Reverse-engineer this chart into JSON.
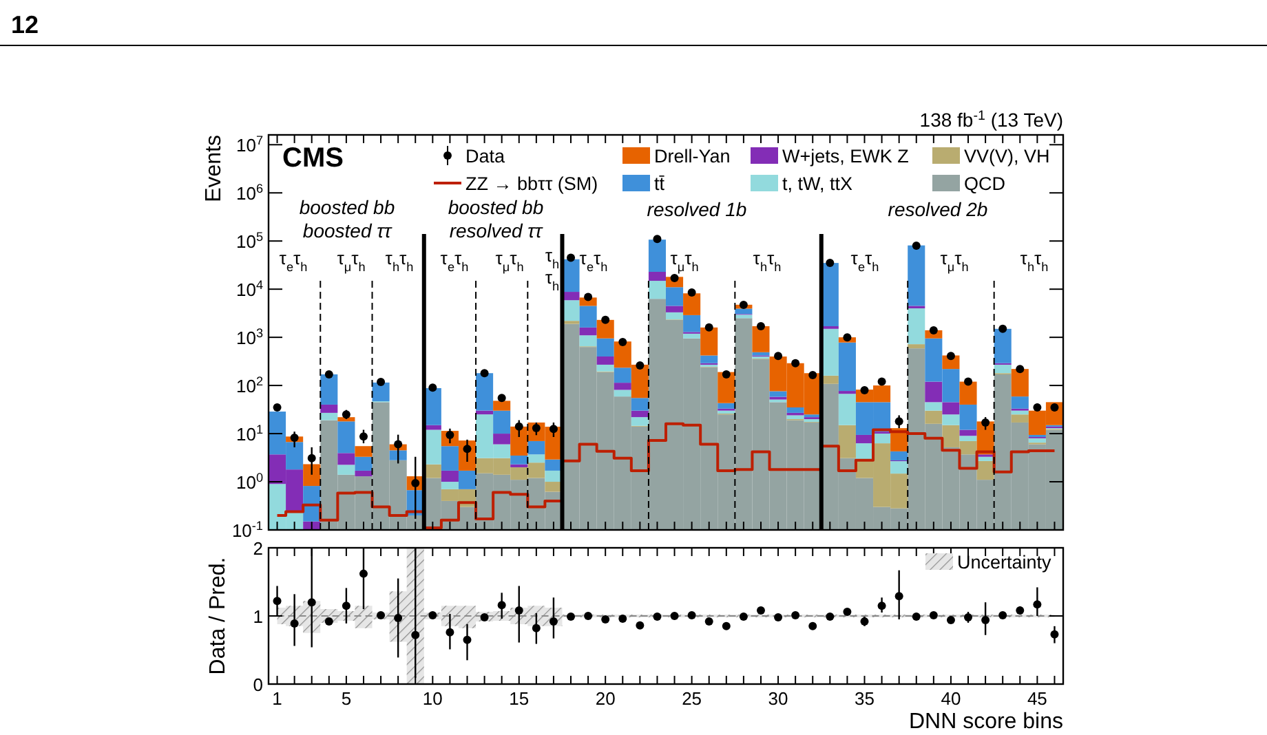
{
  "chart_data": [
    {
      "type": "bar",
      "stacked": true,
      "log": "y",
      "ylabel": "Events",
      "legend": "top",
      "tick_labels": "y",
      "x": [
        1,
        2,
        3,
        4,
        5,
        6,
        7,
        8,
        9,
        10,
        11,
        12,
        13,
        14,
        15,
        16,
        17,
        18,
        19,
        20,
        21,
        22,
        23,
        24,
        25,
        26,
        27,
        28,
        29,
        30,
        31,
        32,
        33,
        34,
        35,
        36,
        37,
        38,
        39,
        40,
        41,
        42,
        43,
        44,
        45,
        46
      ],
      "xlim": [
        0.5,
        46.5
      ],
      "xticks": [
        1,
        {
          "value": 2,
          "label": null
        },
        {
          "value": 3,
          "label": null
        },
        {
          "value": 4,
          "label": null
        },
        5,
        {
          "value": 6,
          "label": null
        },
        {
          "value": 7,
          "label": null
        },
        {
          "value": 8,
          "label": null
        },
        {
          "value": 9,
          "label": null
        },
        10,
        {
          "value": 11,
          "label": null
        },
        {
          "value": 12,
          "label": null
        },
        {
          "value": 13,
          "label": null
        },
        {
          "value": 14,
          "label": null
        },
        15,
        {
          "value": 16,
          "label": null
        },
        {
          "value": 17,
          "label": null
        },
        {
          "value": 18,
          "label": null
        },
        {
          "value": 19,
          "label": null
        },
        20,
        {
          "value": 21,
          "label": null
        },
        {
          "value": 22,
          "label": null
        },
        {
          "value": 23,
          "label": null
        },
        {
          "value": 24,
          "label": null
        },
        25,
        {
          "value": 26,
          "label": null
        },
        {
          "value": 27,
          "label": null
        },
        {
          "value": 28,
          "label": null
        },
        {
          "value": 29,
          "label": null
        },
        30,
        {
          "value": 31,
          "label": null
        },
        {
          "value": 32,
          "label": null
        },
        {
          "value": 33,
          "label": null
        },
        {
          "value": 34,
          "label": null
        },
        35,
        {
          "value": 36,
          "label": null
        },
        {
          "value": 37,
          "label": null
        },
        {
          "value": 38,
          "label": null
        },
        {
          "value": 39,
          "label": null
        },
        40,
        {
          "value": 41,
          "label": null
        },
        {
          "value": 42,
          "label": null
        },
        {
          "value": 43,
          "label": null
        },
        {
          "value": 44,
          "label": null
        },
        45,
        {
          "value": 46,
          "label": null
        }
      ],
      "ylim": [
        0.1,
        16000000
      ],
      "yticks": [
        {
          "value": 0.1,
          "label": "10$^{-1}$"
        },
        {
          "value": 1,
          "label": "10$^{0}$"
        },
        {
          "value": 10,
          "label": "10$^{1}$"
        },
        {
          "value": 100,
          "label": "10$^{2}$"
        },
        {
          "value": 1000,
          "label": "10$^{3}$"
        },
        {
          "value": 10000,
          "label": "10$^{4}$"
        },
        {
          "value": 100000,
          "label": "10$^{5}$"
        },
        {
          "value": 1000000,
          "label": "10$^{6}$"
        },
        {
          "value": 10000000,
          "label": "10$^{7}$"
        }
      ],
      "series": [
        {
          "name": "QCD",
          "color": "#94a4a2",
          "values": [
            null,
            null,
            null,
            19,
            1.4,
            1.3,
            45,
            2.8,
            0.2,
            1.2,
            0.4,
            0.3,
            1.5,
            1.4,
            1.1,
            1.2,
            0.62,
            1900,
            630,
            190,
            59,
            14,
            6300,
            2300,
            950,
            240,
            25,
            2500,
            350,
            45,
            19,
            17,
            108,
            3.1,
            1.2,
            0.3,
            0.28,
            590,
            16,
            5.2,
            3.7,
            1.1,
            170,
            17,
            6,
            12
          ]
        },
        {
          "name": "VV(V), VH",
          "color": "#b9ac70",
          "values": [
            null,
            null,
            null,
            null,
            null,
            null,
            null,
            null,
            null,
            1.1,
            0.3,
            0.4,
            1.6,
            1.7,
            0.9,
            1.3,
            0.38,
            300,
            20,
            5,
            null,
            0.5,
            null,
            50,
            null,
            5,
            1,
            null,
            10,
            null,
            1,
            0.5,
            52,
            11.9,
            1.7,
            6,
            1.2,
            130,
            14,
            9.8,
            3.3,
            1.6,
            10,
            8,
            0.5,
            0.5
          ]
        },
        {
          "name": "t, tW, ttX",
          "color": "#92dadd",
          "values": [
            0.9,
            0.25,
            null,
            8,
            0.85,
            null,
            2,
            null,
            null,
            9.7,
            0.3,
            null,
            22,
            2.9,
            null,
            1.2,
            0.7,
            3700,
            450,
            75,
            22,
            7.5,
            8600,
            950,
            240,
            25,
            4,
            450,
            40,
            6,
            4,
            2.5,
            1340,
            52,
            3.4,
            3.7,
            1.2,
            3280,
            15,
            10,
            2,
            0.6,
            90,
            5,
            1.5,
            0.5
          ]
        },
        {
          "name": "W+jets, EWK Z",
          "color": "#832db6",
          "values": [
            2.8,
            1.55,
            0.15,
            13,
            1.7,
            0.4,
            null,
            null,
            null,
            3,
            0.7,
            null,
            5,
            4,
            0.3,
            null,
            null,
            2900,
            500,
            130,
            33,
            8,
            8000,
            1200,
            100,
            20,
            3,
            100,
            20,
            7,
            3,
            2,
            200,
            10,
            3.1,
            1,
            0.1,
            500,
            75,
            20,
            3,
            0.4,
            20,
            3,
            0.5,
            1
          ]
        },
        {
          "name": "tt̄",
          "color": "#3f90da",
          "values": [
            25,
            4.9,
            0.67,
            130,
            14,
            1.6,
            68,
            1.7,
            0.47,
            73,
            3.8,
            1.0,
            150,
            20,
            1.2,
            3.3,
            1.2,
            33000,
            2900,
            550,
            120,
            25,
            84000,
            6500,
            1600,
            130,
            10,
            900,
            70,
            18,
            8,
            3,
            33300,
            703,
            35.6,
            34,
            1.5,
            76500,
            830,
            175,
            28,
            null,
            1210,
            26,
            0.9,
            1
          ]
        },
        {
          "name": "Drell-Yan",
          "color": "#e76300",
          "values": [
            null,
            2,
            1.5,
            null,
            4,
            2.2,
            null,
            1.5,
            0.63,
            null,
            5.9,
            5.5,
            null,
            18,
            10.5,
            10,
            11,
            null,
            2200,
            1350,
            585,
            215,
            null,
            7000,
            5300,
            1180,
            147,
            800,
            1210,
            323,
            255,
            155,
            null,
            220,
            37,
            55,
            8.7,
            null,
            450,
            200,
            80,
            14.2,
            null,
            161,
            20.6,
            30
          ]
        },
        {
          "name": "Data",
          "type": "scatter",
          "marker": "circle",
          "color": "#000000",
          "values": [
            35,
            8.2,
            3.1,
            170,
            25,
            8.7,
            118,
            6,
            0.94,
            90,
            9.4,
            4.8,
            180,
            55,
            14,
            13,
            12.5,
            45000,
            6900,
            2300,
            800,
            260,
            110000,
            17000,
            8500,
            1600,
            170,
            4700,
            1700,
            410,
            290,
            165,
            35000,
            1000,
            80,
            120,
            18,
            80000,
            1400,
            410,
            120,
            17,
            1500,
            220,
            35,
            35
          ],
          "errors": [
            null,
            [
              5.2,
              11
            ],
            [
              1.4,
              5.2
            ],
            null,
            [
              20,
              31
            ],
            [
              6.3,
              12
            ],
            null,
            [
              2.4,
              9.5
            ],
            [
              0.17,
              3.3
            ],
            null,
            [
              6.3,
              12.7
            ],
            [
              2.6,
              7.5
            ],
            null,
            [
              47,
              63
            ],
            [
              8.5,
              19
            ],
            [
              9.3,
              17
            ],
            [
              8.5,
              17
            ],
            null,
            null,
            null,
            null,
            null,
            null,
            null,
            null,
            null,
            null,
            null,
            null,
            null,
            null,
            null,
            null,
            null,
            [
              74,
              86
            ],
            [
              108,
              133
            ],
            [
              13,
              24
            ],
            null,
            null,
            null,
            null,
            [
              12,
              22
            ],
            null,
            null,
            [
              30,
              42
            ],
            [
              29,
              41
            ]
          ]
        },
        {
          "name": "ZZ → bbττ (SM)",
          "type": "step",
          "color": "#bd1f01",
          "values": [
            0.2,
            0.24,
            0.33,
            0.16,
            0.58,
            0.6,
            0.3,
            0.2,
            0.24,
            0.11,
            0.16,
            0.37,
            0.17,
            0.6,
            0.55,
            0.3,
            0.4,
            2.7,
            6,
            4.3,
            3.1,
            1.7,
            7.2,
            16,
            15,
            6,
            1.7,
            1.8,
            4.2,
            1.8,
            1.8,
            1.8,
            5.5,
            1.7,
            2.8,
            12,
            11,
            10,
            8,
            4.5,
            1.9,
            4.2,
            1.6,
            4.2,
            4.4,
            4.4
          ]
        }
      ],
      "ref_lines": [
        {
          "axis": "x",
          "value": 9.5,
          "line_style": "solid",
          "color": "#000000"
        },
        {
          "axis": "x",
          "value": 17.5,
          "line_style": "solid",
          "color": "#000000"
        },
        {
          "axis": "x",
          "value": 32.5,
          "line_style": "solid",
          "color": "#000000"
        },
        {
          "axis": "x",
          "value": 3.5,
          "line_style": "dashed",
          "color": "#000000"
        },
        {
          "axis": "x",
          "value": 6.5,
          "line_style": "dashed",
          "color": "#000000"
        },
        {
          "axis": "x",
          "value": 12.5,
          "line_style": "dashed",
          "color": "#000000"
        },
        {
          "axis": "x",
          "value": 15.5,
          "line_style": "dashed",
          "color": "#000000"
        },
        {
          "axis": "x",
          "value": 22.5,
          "line_style": "dashed",
          "color": "#000000"
        },
        {
          "axis": "x",
          "value": 27.5,
          "line_style": "dashed",
          "color": "#000000"
        },
        {
          "axis": "x",
          "value": 37.5,
          "line_style": "dashed",
          "color": "#000000"
        },
        {
          "axis": "x",
          "value": 42.5,
          "line_style": "dashed",
          "color": "#000000"
        }
      ],
      "annotations": [
        "12",
        "CMS",
        "138 fb$^{-1}$ (13 TeV)",
        "boosted bb\nboosted ττ",
        "boosted bb\nresolved ττ",
        "resolved 1b",
        "resolved 2b",
        "τ$_{e}$τ$_{h}$",
        "τ$_{μ}$τ$_{h}$",
        "τ$_{h}$τ$_{h}$",
        "τ$_{e}$τ$_{h}$",
        "τ$_{μ}$τ$_{h}$",
        "τ$_{h}$\nτ$_{h}$",
        "τ$_{e}$τ$_{h}$",
        "τ$_{μ}$τ$_{h}$",
        "τ$_{h}$τ$_{h}$",
        "τ$_{e}$τ$_{h}$",
        "τ$_{μ}$τ$_{h}$",
        "τ$_{h}$τ$_{h}$"
      ]
    },
    {
      "type": "scatter",
      "xlabel": "DNN score bins",
      "ylabel": "Data / Pred.",
      "legend": "top right",
      "marker": "circle",
      "x": [
        1,
        2,
        3,
        4,
        5,
        6,
        7,
        8,
        9,
        10,
        11,
        12,
        13,
        14,
        15,
        16,
        17,
        18,
        19,
        20,
        21,
        22,
        23,
        24,
        25,
        26,
        27,
        28,
        29,
        30,
        31,
        32,
        33,
        34,
        35,
        36,
        37,
        38,
        39,
        40,
        41,
        42,
        43,
        44,
        45,
        46
      ],
      "xlim": [
        0.5,
        46.5
      ],
      "xticks": [
        1,
        {
          "value": 2,
          "label": null
        },
        {
          "value": 3,
          "label": null
        },
        {
          "value": 4,
          "label": null
        },
        5,
        {
          "value": 6,
          "label": null
        },
        {
          "value": 7,
          "label": null
        },
        {
          "value": 8,
          "label": null
        },
        {
          "value": 9,
          "label": null
        },
        10,
        {
          "value": 11,
          "label": null
        },
        {
          "value": 12,
          "label": null
        },
        {
          "value": 13,
          "label": null
        },
        {
          "value": 14,
          "label": null
        },
        15,
        {
          "value": 16,
          "label": null
        },
        {
          "value": 17,
          "label": null
        },
        {
          "value": 18,
          "label": null
        },
        {
          "value": 19,
          "label": null
        },
        20,
        {
          "value": 21,
          "label": null
        },
        {
          "value": 22,
          "label": null
        },
        {
          "value": 23,
          "label": null
        },
        {
          "value": 24,
          "label": null
        },
        25,
        {
          "value": 26,
          "label": null
        },
        {
          "value": 27,
          "label": null
        },
        {
          "value": 28,
          "label": null
        },
        {
          "value": 29,
          "label": null
        },
        30,
        {
          "value": 31,
          "label": null
        },
        {
          "value": 32,
          "label": null
        },
        {
          "value": 33,
          "label": null
        },
        {
          "value": 34,
          "label": null
        },
        35,
        {
          "value": 36,
          "label": null
        },
        {
          "value": 37,
          "label": null
        },
        {
          "value": 38,
          "label": null
        },
        {
          "value": 39,
          "label": null
        },
        40,
        {
          "value": 41,
          "label": null
        },
        {
          "value": 42,
          "label": null
        },
        {
          "value": 43,
          "label": null
        },
        {
          "value": 44,
          "label": null
        },
        45,
        {
          "value": 46,
          "label": null
        }
      ],
      "ylim": [
        0,
        2
      ],
      "yticks": [
        0,
        1,
        2
      ],
      "series": [
        {
          "name": "Uncertainty",
          "type": "step",
          "marker": "none",
          "color": "#8c8c8c",
          "line_style": "dashed",
          "values": [
            1,
            1,
            1,
            1,
            1,
            1,
            1,
            1,
            1,
            1,
            1,
            1,
            1,
            1,
            1,
            1,
            1,
            1,
            1,
            1,
            1,
            1,
            1,
            1,
            1,
            1,
            1,
            1,
            1,
            1,
            1,
            1,
            1,
            1,
            1,
            1,
            1,
            1,
            1,
            1,
            1,
            1,
            1,
            1,
            1,
            1
          ],
          "lower": [
            0.88,
            0.85,
            0.75,
            0.9,
            0.93,
            0.82,
            0.95,
            0.62,
            0,
            0.95,
            0.85,
            0.82,
            0.92,
            0.93,
            0.88,
            0.85,
            0.85,
            0.98,
            0.98,
            0.98,
            0.98,
            0.98,
            0.98,
            0.98,
            0.98,
            0.98,
            0.98,
            0.98,
            0.98,
            0.98,
            0.98,
            0.98,
            0.98,
            0.98,
            0.98,
            0.98,
            0.98,
            0.98,
            0.98,
            0.98,
            0.98,
            0.98,
            0.98,
            0.98,
            0.98,
            0.98
          ],
          "upper": [
            1.12,
            1.15,
            1.22,
            1.1,
            1.07,
            1.15,
            1.05,
            1.36,
            2,
            1.05,
            1.15,
            1.15,
            1.06,
            1.07,
            1.12,
            1.15,
            1.12,
            1.02,
            1.02,
            1.02,
            1.02,
            1.02,
            1.02,
            1.02,
            1.02,
            1.02,
            1.02,
            1.02,
            1.02,
            1.02,
            1.02,
            1.02,
            1.02,
            1.02,
            1.02,
            1.02,
            1.02,
            1.02,
            1.02,
            1.02,
            1.02,
            1.02,
            1.02,
            1.02,
            1.02,
            1.02
          ]
        },
        {
          "color": "#000000",
          "values": [
            1.22,
            0.89,
            1.2,
            0.92,
            1.15,
            1.62,
            1.01,
            0.97,
            0.72,
            1.01,
            0.76,
            0.65,
            0.98,
            1.16,
            1.08,
            0.82,
            0.92,
            0.99,
            1.0,
            0.95,
            0.96,
            0.86,
            0.99,
            1.0,
            1.01,
            0.92,
            0.85,
            0.99,
            1.08,
            0.98,
            1.01,
            0.85,
            0.99,
            1.06,
            0.92,
            1.15,
            1.29,
            0.99,
            1.01,
            0.94,
            0.98,
            0.94,
            1.01,
            1.08,
            1.17,
            0.73
          ],
          "errors": [
            [
              0.99,
              1.44
            ],
            [
              0.56,
              1.32
            ],
            [
              0.54,
              2
            ],
            0.05,
            [
              0.89,
              1.41
            ],
            [
              1.1,
              2
            ],
            null,
            [
              0.39,
              1.55
            ],
            [
              0.09,
              2
            ],
            null,
            [
              0.51,
              1.03
            ],
            [
              0.35,
              0.88
            ],
            null,
            [
              0.96,
              1.34
            ],
            [
              0.61,
              1.44
            ],
            [
              0.59,
              1.04
            ],
            [
              0.67,
              1.27
            ],
            null,
            null,
            null,
            null,
            null,
            null,
            null,
            null,
            null,
            null,
            null,
            null,
            null,
            null,
            null,
            null,
            null,
            0.07,
            [
              1.05,
              1.27
            ],
            [
              0.95,
              1.67
            ],
            null,
            null,
            null,
            0.08,
            [
              0.72,
              1.2
            ],
            null,
            0.06,
            [
              1.0,
              1.42
            ],
            [
              0.6,
              0.85
            ]
          ]
        }
      ]
    }
  ]
}
